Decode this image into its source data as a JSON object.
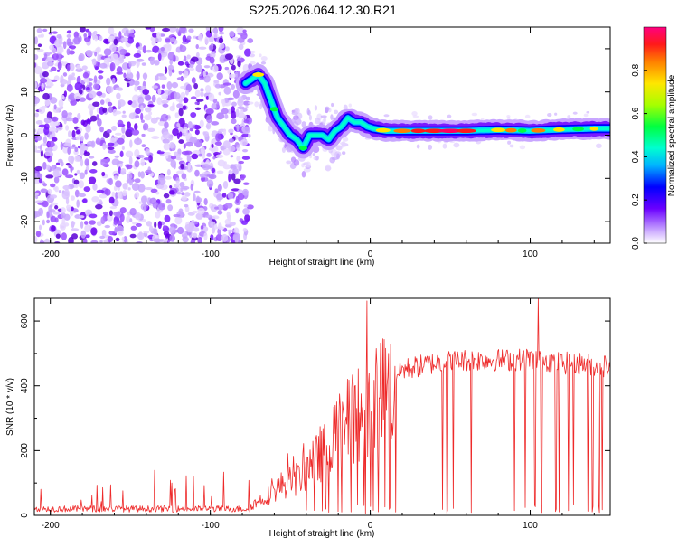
{
  "title": "S225.2026.064.12.30.R21",
  "chart_data": [
    {
      "type": "heatmap",
      "xlabel": "Height of straight line (km)",
      "ylabel": "Frequency (Hz)",
      "xlim": [
        -210,
        150
      ],
      "ylim": [
        -25,
        25
      ],
      "xticks": [
        -200,
        -100,
        0,
        100
      ],
      "yticks": [
        20,
        10,
        0,
        -10,
        -20
      ],
      "colorbar": {
        "label": "Normalized spectral amplitude",
        "range": [
          0,
          1
        ],
        "ticks": [
          0.0,
          0.2,
          0.4,
          0.6,
          0.8
        ]
      },
      "ridge": {
        "description_x": [
          -78,
          -74,
          -70,
          -66,
          -62,
          -58,
          -54,
          -50,
          -46,
          -42,
          -38,
          -34,
          -30,
          -26,
          -22,
          -18,
          -14,
          -10,
          -6,
          -2,
          2,
          10,
          20,
          40,
          60,
          80,
          100,
          120,
          140,
          150
        ],
        "frequency": [
          12,
          13,
          14,
          12,
          8,
          4,
          2,
          0,
          -1,
          -3,
          0,
          0,
          0,
          -1,
          1,
          2,
          4,
          3,
          3,
          2,
          1.5,
          1,
          1,
          1,
          1,
          1.2,
          1,
          1.3,
          1.5,
          1.5
        ]
      },
      "noise_region_xlim": [
        -210,
        -75
      ]
    },
    {
      "type": "line",
      "xlabel": "Height of straight line (km)",
      "ylabel": "SNR (10 * v/v)",
      "xlim": [
        -210,
        150
      ],
      "ylim": [
        0,
        670
      ],
      "xticks": [
        -200,
        -100,
        0,
        100
      ],
      "yticks": [
        0,
        200,
        400,
        600
      ],
      "series": [
        {
          "name": "SNR",
          "color": "#ee2a2a",
          "envelope_x": [
            -210,
            -180,
            -150,
            -120,
            -90,
            -75,
            -65,
            -55,
            -45,
            -40,
            -35,
            -30,
            -25,
            -20,
            -15,
            -10,
            -5,
            0,
            5,
            10,
            15,
            20,
            30,
            40,
            50,
            60,
            70,
            80,
            90,
            100,
            110,
            120,
            130,
            140,
            150
          ],
          "envelope_y": [
            18,
            20,
            20,
            20,
            22,
            30,
            60,
            100,
            120,
            150,
            170,
            210,
            250,
            280,
            300,
            320,
            340,
            360,
            380,
            410,
            430,
            450,
            460,
            470,
            475,
            480,
            480,
            480,
            480,
            485,
            480,
            470,
            470,
            465,
            460
          ],
          "dropouts_x": [
            -40,
            -35,
            -30,
            -28,
            -26,
            -20,
            -18,
            -12,
            -8,
            -4,
            -3,
            0,
            2,
            5,
            9,
            12,
            16,
            45,
            48,
            52,
            63,
            90,
            97,
            103,
            105,
            107,
            116,
            118,
            124,
            127,
            136,
            139,
            143,
            145
          ]
        }
      ],
      "peak": {
        "x": 105,
        "y": 670
      }
    }
  ]
}
